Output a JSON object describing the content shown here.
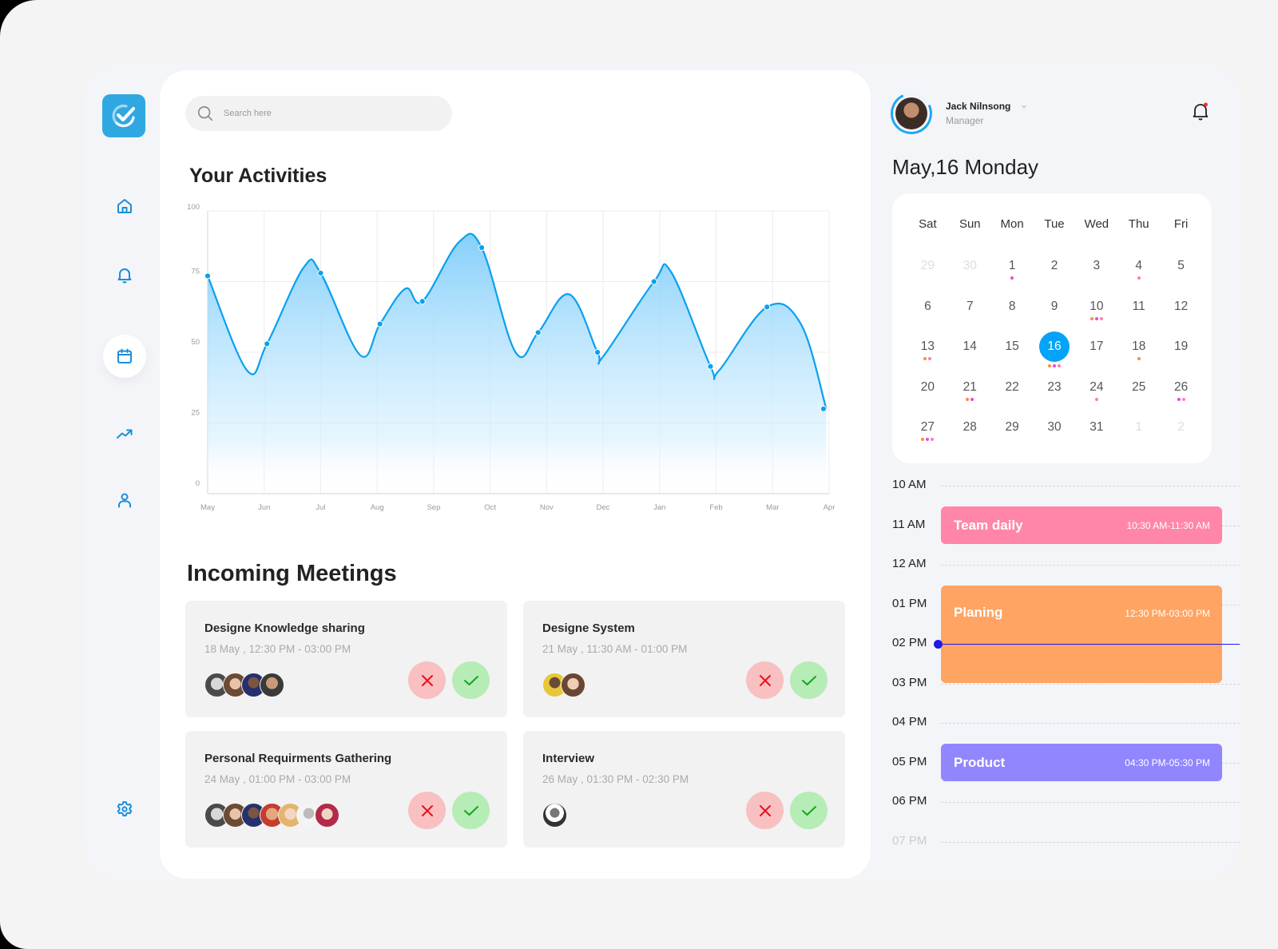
{
  "app": {
    "logo_icon": "check-circle-icon",
    "colors": {
      "accent": "#05a3f7",
      "icon_blue": "#1a8fd8",
      "logo_bg": "#2fa8e2",
      "reject_bg": "#f8c0c0",
      "reject_icon": "#e8101c",
      "accept_bg": "#b6ecb6",
      "accept_icon": "#13a51d",
      "event_pink": "#ff86a9",
      "event_orange": "#ffa462",
      "event_purple": "#9286ff",
      "now_line": "#2019e8",
      "dot_orange": "#ff8a3d",
      "dot_magenta": "#e64ad6",
      "dot_pink": "#ff7eb2"
    }
  },
  "sidebar": {
    "items": [
      {
        "name": "home",
        "icon": "home-icon",
        "active": false
      },
      {
        "name": "notifications",
        "icon": "bell-icon",
        "active": false
      },
      {
        "name": "calendar",
        "icon": "calendar-icon",
        "active": true
      },
      {
        "name": "analytics",
        "icon": "trending-up-icon",
        "active": false
      },
      {
        "name": "profile",
        "icon": "user-icon",
        "active": false
      }
    ],
    "settings": {
      "icon": "gear-icon"
    }
  },
  "search": {
    "placeholder": "Search here",
    "value": ""
  },
  "activities": {
    "title": "Your Activities"
  },
  "chart_data": {
    "type": "area",
    "title": "Your Activities",
    "xlabel": "",
    "ylabel": "",
    "categories": [
      "May",
      "Jun",
      "Jul",
      "Aug",
      "Sep",
      "Oct",
      "Nov",
      "Dec",
      "Jan",
      "Feb",
      "Mar",
      "Apr"
    ],
    "yticks": [
      0,
      25,
      50,
      75,
      100
    ],
    "ylim": [
      0,
      100
    ],
    "grid": true,
    "smooth": true,
    "series": [
      {
        "name": "Activities",
        "points": [
          {
            "x": 0.0,
            "y": 77
          },
          {
            "x": 1.05,
            "y": 53
          },
          {
            "x": 2.0,
            "y": 78
          },
          {
            "x": 3.05,
            "y": 60
          },
          {
            "x": 3.8,
            "y": 68
          },
          {
            "x": 4.85,
            "y": 87
          },
          {
            "x": 5.85,
            "y": 57
          },
          {
            "x": 6.9,
            "y": 50
          },
          {
            "x": 7.9,
            "y": 75
          },
          {
            "x": 8.9,
            "y": 45
          },
          {
            "x": 9.9,
            "y": 66
          },
          {
            "x": 10.9,
            "y": 30
          }
        ],
        "curve": [
          [
            0.0,
            77
          ],
          [
            0.7,
            43.5
          ],
          [
            1.05,
            53
          ],
          [
            1.7,
            80
          ],
          [
            2.0,
            78
          ],
          [
            2.7,
            49
          ],
          [
            3.05,
            60
          ],
          [
            3.5,
            72.5
          ],
          [
            3.8,
            68
          ],
          [
            4.45,
            89
          ],
          [
            4.85,
            87
          ],
          [
            5.45,
            50
          ],
          [
            5.85,
            57
          ],
          [
            6.4,
            70.5
          ],
          [
            6.9,
            50
          ],
          [
            7.0,
            48.5
          ],
          [
            7.9,
            75
          ],
          [
            8.2,
            78.5
          ],
          [
            8.9,
            45
          ],
          [
            9.05,
            43.5
          ],
          [
            9.9,
            66
          ],
          [
            10.5,
            60
          ],
          [
            10.95,
            30
          ]
        ],
        "color": "#0aa0f0"
      }
    ]
  },
  "meetings": {
    "title": "Incoming Meetings",
    "items": [
      {
        "title": "Designe Knowledge sharing",
        "time": "18 May , 12:30 PM - 03:00 PM",
        "attendees": 4
      },
      {
        "title": "Designe System",
        "time": "21 May , 11:30 AM - 01:00 PM",
        "attendees": 2
      },
      {
        "title": "Personal Requirments Gathering",
        "time": "24 May , 01:00 PM - 03:00 PM",
        "attendees": 7
      },
      {
        "title": "Interview",
        "time": "26 May , 01:30 PM - 02:30 PM",
        "attendees": 1
      }
    ],
    "reject_icon": "close-icon",
    "accept_icon": "check-icon"
  },
  "user": {
    "name": "Jack Nilnsong",
    "role": "Manager",
    "chevron": "⌄"
  },
  "calendar": {
    "title": "May,16 Monday",
    "weekdays": [
      "Sat",
      "Sun",
      "Mon",
      "Tue",
      "Wed",
      "Thu",
      "Fri"
    ],
    "weeks": [
      [
        {
          "d": "29",
          "muted": true,
          "dots": []
        },
        {
          "d": "30",
          "muted": true,
          "dots": []
        },
        {
          "d": "1",
          "dots": [
            "magenta"
          ]
        },
        {
          "d": "2",
          "dots": []
        },
        {
          "d": "3",
          "dots": []
        },
        {
          "d": "4",
          "dots": [
            "pink"
          ]
        },
        {
          "d": "5",
          "dots": []
        }
      ],
      [
        {
          "d": "6",
          "dots": []
        },
        {
          "d": "7",
          "dots": []
        },
        {
          "d": "8",
          "dots": []
        },
        {
          "d": "9",
          "dots": []
        },
        {
          "d": "10",
          "dots": [
            "orange",
            "magenta",
            "pink"
          ]
        },
        {
          "d": "11",
          "dots": []
        },
        {
          "d": "12",
          "dots": []
        }
      ],
      [
        {
          "d": "13",
          "dots": [
            "orange",
            "pink"
          ]
        },
        {
          "d": "14",
          "dots": []
        },
        {
          "d": "15",
          "dots": []
        },
        {
          "d": "16",
          "selected": true,
          "dots": [
            "orange",
            "magenta",
            "pink"
          ]
        },
        {
          "d": "17",
          "dots": []
        },
        {
          "d": "18",
          "dots": [
            "orange"
          ]
        },
        {
          "d": "19",
          "dots": []
        }
      ],
      [
        {
          "d": "20",
          "dots": []
        },
        {
          "d": "21",
          "dots": [
            "orange",
            "magenta"
          ]
        },
        {
          "d": "22",
          "dots": []
        },
        {
          "d": "23",
          "dots": []
        },
        {
          "d": "24",
          "dots": [
            "pink"
          ]
        },
        {
          "d": "25",
          "dots": []
        },
        {
          "d": "26",
          "dots": [
            "magenta",
            "pink"
          ]
        }
      ],
      [
        {
          "d": "27",
          "dots": [
            "orange",
            "magenta",
            "pink"
          ]
        },
        {
          "d": "28",
          "dots": []
        },
        {
          "d": "29",
          "dots": []
        },
        {
          "d": "30",
          "dots": []
        },
        {
          "d": "31",
          "dots": []
        },
        {
          "d": "1",
          "muted": true,
          "dots": []
        },
        {
          "d": "2",
          "muted": true,
          "dots": []
        }
      ]
    ]
  },
  "schedule": {
    "hours": [
      "10 AM",
      "11 AM",
      "12 AM",
      "01 PM",
      "02 PM",
      "03 PM",
      "04 PM",
      "05 PM",
      "06 PM",
      "07 PM"
    ],
    "events": [
      {
        "title": "Team daily",
        "time": "10:30 AM-11:30 AM",
        "color": "#ff86a9",
        "start": 0.5,
        "end": 1.5
      },
      {
        "title": "Planing",
        "time": "12:30 PM-03:00 PM",
        "color": "#ffa462",
        "start": 2.5,
        "end": 5.0
      },
      {
        "title": "Product",
        "time": "04:30 PM-05:30 PM",
        "color": "#9286ff",
        "start": 6.5,
        "end": 7.5
      }
    ],
    "current_time_at": 4.0
  }
}
